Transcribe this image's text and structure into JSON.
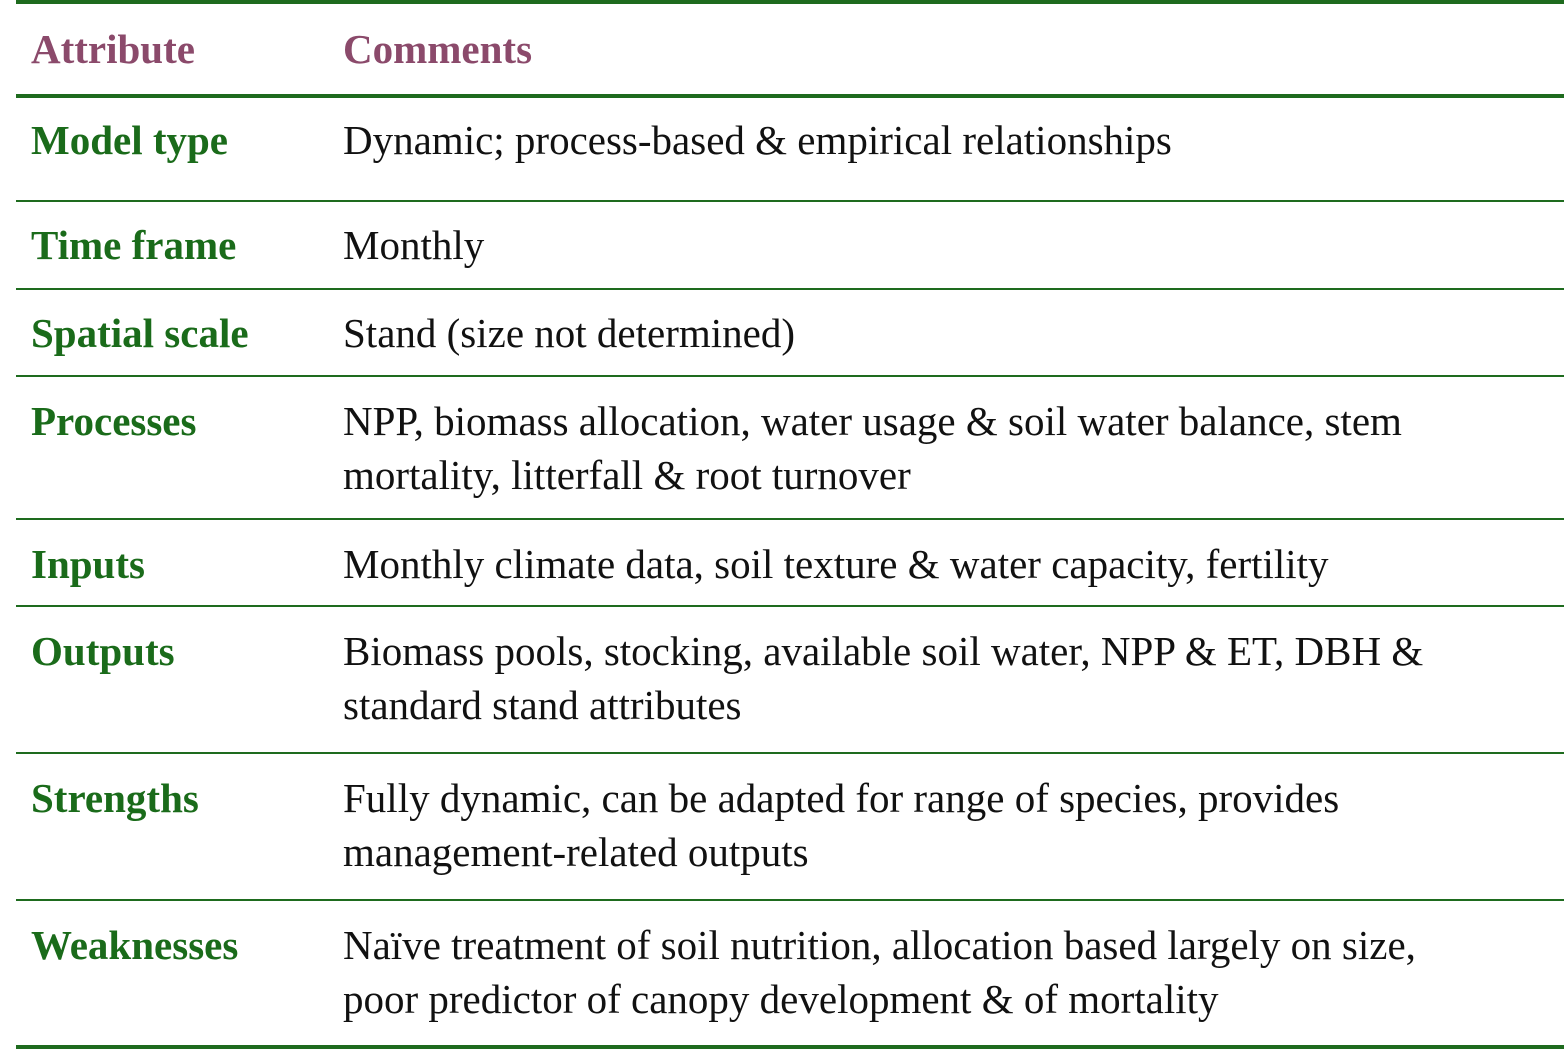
{
  "header": {
    "attribute_label": "Attribute",
    "comments_label": "Comments"
  },
  "rows": [
    {
      "attribute": "Model type",
      "comment_lines": [
        "Dynamic; process-based & empirical relationships"
      ]
    },
    {
      "attribute": "Time frame",
      "comment_lines": [
        "Monthly"
      ]
    },
    {
      "attribute": "Spatial scale",
      "comment_lines": [
        "Stand (size not determined)"
      ]
    },
    {
      "attribute": "Processes",
      "comment_lines": [
        "NPP, biomass allocation, water usage & soil water balance, stem",
        "mortality, litterfall & root turnover"
      ]
    },
    {
      "attribute": "Inputs",
      "comment_lines": [
        "Monthly climate data, soil texture & water capacity, fertility"
      ]
    },
    {
      "attribute": "Outputs",
      "comment_lines": [
        "Biomass pools, stocking, available soil water, NPP & ET, DBH &",
        "standard stand attributes"
      ]
    },
    {
      "attribute": "Strengths",
      "comment_lines": [
        "Fully dynamic, can be adapted for range of species, provides",
        "management-related outputs"
      ]
    },
    {
      "attribute": "Weaknesses",
      "comment_lines": [
        "Naïve treatment of soil nutrition, allocation based largely on size,",
        "poor predictor of canopy development & of mortality"
      ]
    }
  ],
  "colors": {
    "header_text": "#8b4a6b",
    "attribute_text": "#1a6b1a",
    "rule": "#1e6b1e"
  }
}
